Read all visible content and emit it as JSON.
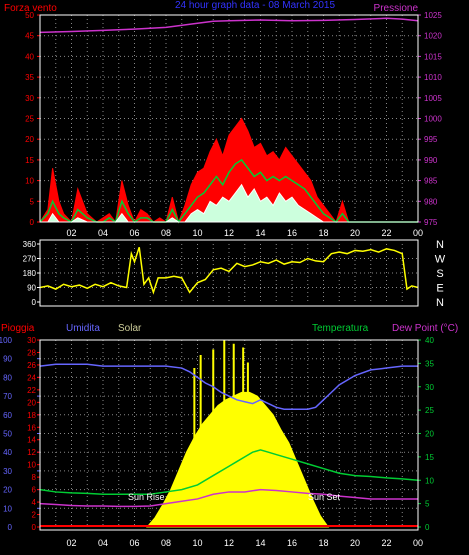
{
  "colors": {
    "background": "#000000",
    "wind": "#ff0000",
    "gust_fill": "#ff0000",
    "wind_avg": "#00cc33",
    "wind_min": "#ffffff",
    "pressure": "#cc33cc",
    "direction": "#ffff00",
    "rain": "#ff0000",
    "humidity": "#6666ff",
    "solar": "#ffff00",
    "solar_label": "#cccc99",
    "temperature": "#00cc33",
    "dewpoint": "#cc33cc",
    "axis_white": "#ffffff",
    "grid": "#888888"
  },
  "chart_data": [
    {
      "type": "line",
      "title": "24 hour graph data - 08 March 2015",
      "left_label": "Forza vento",
      "right_label": "Pressione",
      "xticks": [
        "02",
        "04",
        "06",
        "08",
        "10",
        "12",
        "14",
        "16",
        "18",
        "20",
        "22",
        "00"
      ],
      "y_left_ticks": [
        "0",
        "5",
        "10",
        "15",
        "20",
        "25",
        "30",
        "35",
        "40",
        "45",
        "50"
      ],
      "y_right_ticks": [
        "975",
        "980",
        "985",
        "990",
        "995",
        "1000",
        "1005",
        "1010",
        "1015",
        "1020",
        "1025"
      ],
      "ylim_left": [
        0,
        50
      ],
      "ylim_right": [
        975,
        1025
      ],
      "series": [
        {
          "name": "gust",
          "x": [
            0,
            0.5,
            0.8,
            1.2,
            1.5,
            2,
            2.4,
            3,
            3.6,
            4,
            4.4,
            4.8,
            5.2,
            5.6,
            6,
            6.4,
            6.8,
            7.2,
            7.6,
            8,
            8.4,
            8.8,
            9.2,
            9.6,
            10,
            10.4,
            10.8,
            11.2,
            11.6,
            12,
            12.4,
            12.8,
            13.2,
            13.6,
            14,
            14.4,
            14.8,
            15.2,
            15.6,
            16,
            16.4,
            16.8,
            17.2,
            17.6,
            18,
            18.4,
            18.8,
            19.2,
            19.6,
            20,
            20.4,
            20.8,
            21.2,
            21.6,
            22,
            22.4,
            22.8,
            23.2,
            23.6,
            24
          ],
          "y": [
            0,
            3,
            13,
            5,
            2,
            0,
            8,
            2,
            0,
            1,
            2,
            0,
            10,
            4,
            0,
            3,
            2,
            0,
            1,
            0,
            6,
            0,
            4,
            9,
            12,
            13,
            17,
            20,
            16,
            21,
            23,
            25,
            22,
            18,
            19,
            16,
            17,
            15,
            18,
            16,
            14,
            12,
            10,
            6,
            4,
            2,
            0,
            5,
            0,
            0,
            0,
            0,
            0,
            0,
            0,
            0,
            0,
            0,
            0,
            0
          ]
        },
        {
          "name": "average",
          "x": [
            0,
            0.5,
            0.8,
            1.2,
            1.5,
            2,
            2.4,
            3,
            3.6,
            4,
            4.4,
            4.8,
            5.2,
            5.6,
            6,
            6.4,
            6.8,
            7.2,
            7.6,
            8,
            8.4,
            8.8,
            9.2,
            9.6,
            10,
            10.4,
            10.8,
            11.2,
            11.6,
            12,
            12.4,
            12.8,
            13.2,
            13.6,
            14,
            14.4,
            14.8,
            15.2,
            15.6,
            16,
            16.4,
            16.8,
            17.2,
            17.6,
            18,
            18.4,
            18.8,
            19.2,
            19.6,
            20,
            20.4,
            20.8,
            21.2,
            21.6,
            22,
            22.4,
            22.8,
            23.2,
            23.6,
            24
          ],
          "y": [
            0,
            2,
            5,
            2,
            1,
            0,
            3,
            1,
            0,
            0,
            1,
            0,
            5,
            2,
            0,
            1,
            1,
            0,
            0,
            0,
            3,
            0,
            2,
            4,
            6,
            7,
            9,
            11,
            9,
            12,
            14,
            15,
            13,
            11,
            12,
            10,
            11,
            10,
            11,
            10,
            9,
            8,
            6,
            4,
            2,
            1,
            0,
            2,
            0,
            0,
            0,
            0,
            0,
            0,
            0,
            0,
            0,
            0,
            0,
            0
          ]
        },
        {
          "name": "lull",
          "x": [
            0,
            0.5,
            0.8,
            1.2,
            1.5,
            2,
            2.4,
            3,
            3.6,
            4,
            4.4,
            4.8,
            5.2,
            5.6,
            6,
            6.4,
            6.8,
            7.2,
            7.6,
            8,
            8.4,
            8.8,
            9.2,
            9.6,
            10,
            10.4,
            10.8,
            11.2,
            11.6,
            12,
            12.4,
            12.8,
            13.2,
            13.6,
            14,
            14.4,
            14.8,
            15.2,
            15.6,
            16,
            16.4,
            16.8,
            17.2,
            17.6,
            18,
            18.4,
            18.8,
            19.2,
            19.6,
            20,
            20.4,
            20.8,
            21.2,
            21.6,
            22,
            22.4,
            22.8,
            23.2,
            23.6,
            24
          ],
          "y": [
            0,
            0,
            2,
            0,
            0,
            0,
            1,
            0,
            0,
            0,
            0,
            0,
            2,
            0,
            0,
            0,
            0,
            0,
            0,
            0,
            1,
            0,
            0,
            2,
            3,
            2,
            5,
            4,
            6,
            5,
            7,
            9,
            6,
            8,
            5,
            6,
            4,
            7,
            5,
            6,
            4,
            3,
            2,
            1,
            0,
            0,
            0,
            0,
            0,
            0,
            0,
            0,
            0,
            0,
            0,
            0,
            0,
            0,
            0,
            0
          ]
        },
        {
          "name": "pressure",
          "x": [
            0,
            2,
            4,
            6,
            8,
            10,
            11,
            12,
            14,
            16,
            18,
            20,
            22,
            23,
            24
          ],
          "y": [
            1020.8,
            1021,
            1021.3,
            1021.6,
            1022,
            1023,
            1023.5,
            1023.6,
            1023.8,
            1023.6,
            1023.7,
            1023.9,
            1024.2,
            1024,
            1023.6
          ]
        }
      ]
    },
    {
      "type": "line",
      "right_labels": [
        "N",
        "W",
        "S",
        "E",
        "N"
      ],
      "y_ticks": [
        "0",
        "90",
        "180",
        "270",
        "360"
      ],
      "ylim": [
        0,
        360
      ],
      "xticks": [
        "02",
        "04",
        "06",
        "08",
        "10",
        "12",
        "14",
        "16",
        "18",
        "20",
        "22",
        "00"
      ],
      "series": [
        {
          "name": "direction",
          "x": [
            0,
            0.5,
            1,
            1.5,
            2,
            2.5,
            3,
            3.5,
            4,
            4.5,
            5,
            5.5,
            5.8,
            6,
            6.3,
            6.6,
            6.9,
            7.2,
            7.5,
            8,
            8.5,
            9,
            9.5,
            10,
            10.5,
            11,
            11.5,
            12,
            12.5,
            13,
            13.5,
            14,
            14.5,
            15,
            15.5,
            16,
            16.5,
            17,
            17.5,
            18,
            18.5,
            19,
            19.5,
            20,
            20.5,
            21,
            21.5,
            22,
            22.5,
            23,
            23.3,
            23.6,
            24
          ],
          "y": [
            90,
            100,
            80,
            110,
            95,
            105,
            85,
            110,
            95,
            120,
            100,
            90,
            300,
            250,
            340,
            110,
            150,
            60,
            150,
            150,
            160,
            150,
            60,
            120,
            140,
            200,
            210,
            190,
            240,
            220,
            230,
            250,
            240,
            260,
            235,
            250,
            245,
            270,
            255,
            250,
            300,
            310,
            300,
            320,
            315,
            325,
            310,
            330,
            320,
            300,
            80,
            100,
            90
          ]
        }
      ]
    },
    {
      "type": "line",
      "left_label": "Pioggia",
      "humidity_label": "Umidita",
      "solar_label": "Solar",
      "temp_label": "Temperatura",
      "dew_label": "Dew Point (°C)",
      "annotations": [
        "Sun Rise",
        "Sun Set"
      ],
      "xticks": [
        "02",
        "04",
        "06",
        "08",
        "10",
        "12",
        "14",
        "16",
        "18",
        "20",
        "22",
        "00"
      ],
      "y_humidity_ticks": [
        "0",
        "10",
        "20",
        "30",
        "40",
        "50",
        "60",
        "70",
        "80",
        "90",
        "100"
      ],
      "y_rain_ticks": [
        "0",
        "2",
        "4",
        "6",
        "8",
        "10",
        "12",
        "14",
        "16",
        "18",
        "20",
        "22",
        "24",
        "26",
        "28",
        "30"
      ],
      "y_temp_ticks": [
        "0",
        "5",
        "10",
        "15",
        "20",
        "25",
        "30",
        "35",
        "40"
      ],
      "ylim_humidity": [
        0,
        100
      ],
      "ylim_rain": [
        0,
        30
      ],
      "ylim_temp": [
        0,
        40
      ],
      "series": [
        {
          "name": "humidity",
          "x": [
            0,
            1,
            2,
            3,
            4,
            5,
            6,
            7,
            8,
            9,
            9.5,
            10,
            10.5,
            11,
            11.5,
            12,
            12.5,
            13,
            13.5,
            14,
            14.5,
            15,
            15.5,
            16,
            16.5,
            17,
            17.5,
            18,
            18.5,
            19,
            20,
            21,
            22,
            23,
            24
          ],
          "y": [
            86,
            87,
            87,
            87,
            86,
            86,
            86,
            86,
            86,
            85,
            83,
            80,
            77,
            75,
            72,
            70,
            68,
            67,
            66,
            68,
            66,
            64,
            63,
            63,
            63,
            63,
            64,
            68,
            72,
            76,
            81,
            84,
            85,
            86,
            86
          ]
        },
        {
          "name": "temperature",
          "x": [
            0,
            1,
            2,
            3,
            4,
            5,
            6,
            7,
            8,
            9,
            10,
            11,
            12,
            12.5,
            13,
            13.5,
            14,
            14.5,
            15,
            16,
            17,
            18,
            19,
            20,
            21,
            22,
            23,
            24
          ],
          "y": [
            8,
            7.5,
            7.3,
            7.2,
            7,
            7,
            7,
            7,
            7.5,
            8,
            9,
            11,
            13,
            14,
            15,
            16,
            16.5,
            16,
            15.5,
            14.5,
            13.5,
            12.5,
            11.5,
            11,
            10.8,
            10.5,
            10.3,
            10
          ]
        },
        {
          "name": "dewpoint",
          "x": [
            0,
            1,
            2,
            3,
            4,
            5,
            6,
            7,
            8,
            9,
            10,
            11,
            12,
            13,
            14,
            15,
            16,
            17,
            18,
            19,
            20,
            21,
            22,
            23,
            24
          ],
          "y": [
            5,
            4.8,
            4.6,
            4.5,
            4.5,
            4.4,
            4.4,
            4.5,
            5,
            5.5,
            6,
            7,
            7.5,
            7.5,
            8,
            7.8,
            7.5,
            7.2,
            7,
            6.6,
            6.3,
            6,
            6,
            6,
            6
          ]
        },
        {
          "name": "solar",
          "x": [
            6.8,
            7.3,
            7.8,
            8.3,
            8.8,
            9.3,
            9.8,
            10.3,
            10.8,
            11.3,
            11.8,
            12.3,
            12.8,
            13.3,
            13.8,
            14.3,
            14.8,
            15.3,
            15.8,
            16.3,
            16.8,
            17.3,
            17.8,
            18.3
          ],
          "y": [
            0,
            0.05,
            0.12,
            0.2,
            0.3,
            0.4,
            0.48,
            0.55,
            0.6,
            0.65,
            0.68,
            0.7,
            0.72,
            0.72,
            0.7,
            0.65,
            0.6,
            0.52,
            0.45,
            0.35,
            0.25,
            0.15,
            0.06,
            0
          ]
        },
        {
          "name": "solar_spikes",
          "x": [
            9.8,
            10.2,
            10.6,
            11,
            11.4,
            11.7,
            12,
            12.3,
            12.6,
            12.9,
            13.2
          ],
          "y": [
            0.85,
            0.92,
            0.55,
            0.95,
            0.6,
            1,
            0.45,
            0.98,
            0.5,
            0.96,
            0.88
          ]
        },
        {
          "name": "rain",
          "x": [
            0,
            24
          ],
          "y": [
            0,
            0
          ]
        }
      ]
    }
  ]
}
